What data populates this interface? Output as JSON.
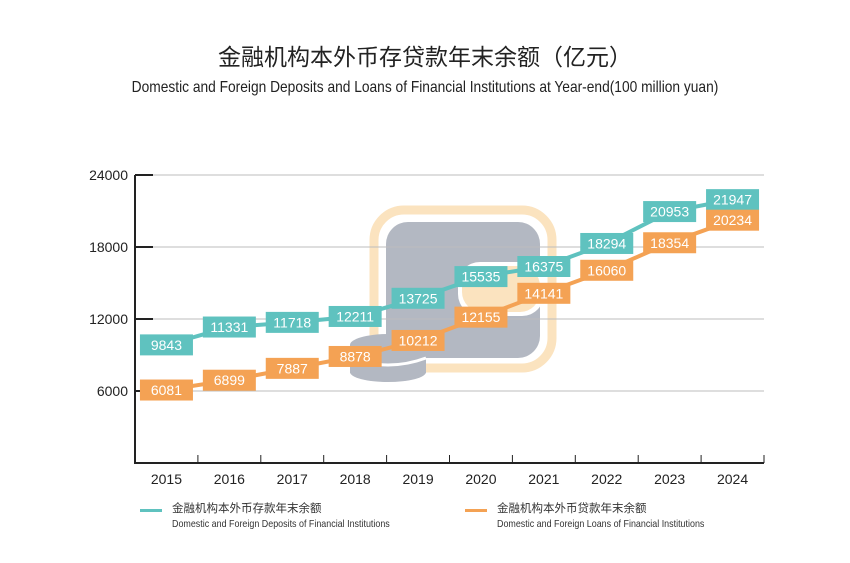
{
  "title_cn": "金融机构本外币存贷款年末余额（亿元）",
  "title_en": "Domestic and Foreign Deposits and Loans of Financial Institutions at Year-end(100 million yuan)",
  "colors": {
    "deposits": "#5fc2bf",
    "loans": "#f4a254",
    "grid": "#bdbdbd",
    "axis": "#222222",
    "decor_gray": "#b3b8c2",
    "decor_peach": "#fbe3bf"
  },
  "chart_data": {
    "type": "line",
    "title": "金融机构本外币存贷款年末余额（亿元）",
    "subtitle": "Domestic and Foreign Deposits and Loans of Financial Institutions at Year-end(100 million yuan)",
    "xlabel": "",
    "ylabel": "",
    "categories": [
      "2015",
      "2016",
      "2017",
      "2018",
      "2019",
      "2020",
      "2021",
      "2022",
      "2023",
      "2024"
    ],
    "ylim": [
      0,
      24000
    ],
    "yticks": [
      6000,
      12000,
      18000,
      24000
    ],
    "ytick_labels": [
      "6000",
      "12000",
      "18000",
      "24000"
    ],
    "grid": true,
    "legend_position": "bottom",
    "series": [
      {
        "name": "金融机构本外币存款年末余额",
        "name_en": "Domestic and Foreign Deposits of Financial Institutions",
        "color": "#5fc2bf",
        "values": [
          9843,
          11331,
          11718,
          12211,
          13725,
          15535,
          16375,
          18294,
          20953,
          21947
        ]
      },
      {
        "name": "金融机构本外币贷款年末余额",
        "name_en": "Domestic and Foreign Loans of Financial Institutions",
        "color": "#f4a254",
        "values": [
          6081,
          6899,
          7887,
          8878,
          10212,
          12155,
          14141,
          16060,
          18354,
          20234
        ]
      }
    ]
  },
  "decor_icon": "wallet-coins-icon"
}
